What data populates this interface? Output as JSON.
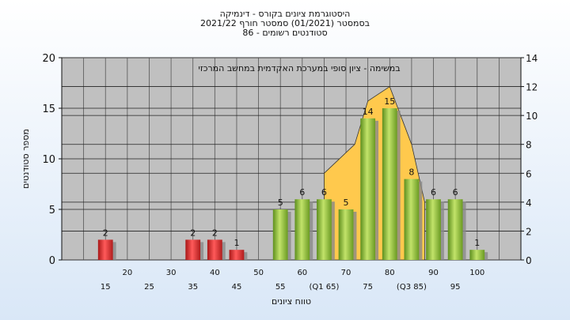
{
  "header": {
    "line1": "היסטוגרמת ציונים בקורס - דינמיקה",
    "line2": "בסמסטר  (01/2021)  סמסטר חורף  2021/22",
    "line3": "סטודנטים רשומים - 86"
  },
  "chart_data": {
    "type": "bar",
    "annotation": "במשימה - ציון סופי במערכת האקדמית במחשב המרכזי",
    "ylabel": "מספר סטודנטים",
    "xlabel": "טווח ציונים",
    "ylim": [
      0,
      20
    ],
    "yticks": [
      0,
      5,
      10,
      15,
      20
    ],
    "y2lim": [
      0,
      14
    ],
    "y2ticks": [
      0,
      2,
      4,
      6,
      8,
      10,
      12,
      14
    ],
    "xlim": [
      5,
      110
    ],
    "ticks_top_row": [
      "20",
      "30",
      "40",
      "50",
      "60",
      "70",
      "80",
      "90",
      "100"
    ],
    "ticks_bottom_row": [
      "15",
      "25",
      "35",
      "45",
      "55",
      "(Q1 65)",
      "75",
      "(Q3 85)",
      "95"
    ],
    "bars": [
      {
        "x": 15,
        "value": 2,
        "color": "#e03030"
      },
      {
        "x": 35,
        "value": 2,
        "color": "#e03030"
      },
      {
        "x": 40,
        "value": 2,
        "color": "#e03030"
      },
      {
        "x": 45,
        "value": 1,
        "color": "#e03030"
      },
      {
        "x": 55,
        "value": 5,
        "color": "#8fbf3a"
      },
      {
        "x": 60,
        "value": 6,
        "color": "#8fbf3a"
      },
      {
        "x": 65,
        "value": 6,
        "color": "#8fbf3a"
      },
      {
        "x": 70,
        "value": 5,
        "color": "#8fbf3a"
      },
      {
        "x": 75,
        "value": 14,
        "color": "#8fbf3a"
      },
      {
        "x": 80,
        "value": 15,
        "color": "#8fbf3a"
      },
      {
        "x": 85,
        "value": 8,
        "color": "#8fbf3a"
      },
      {
        "x": 90,
        "value": 6,
        "color": "#8fbf3a"
      },
      {
        "x": 95,
        "value": 6,
        "color": "#8fbf3a"
      },
      {
        "x": 100,
        "value": 1,
        "color": "#8fbf3a"
      }
    ],
    "area": [
      [
        65,
        6
      ],
      [
        72,
        8
      ],
      [
        75,
        11
      ],
      [
        80,
        12
      ],
      [
        85,
        8
      ],
      [
        88,
        4
      ]
    ],
    "area_color": "#ffc94d",
    "plot_background": "#c0c0c0"
  }
}
